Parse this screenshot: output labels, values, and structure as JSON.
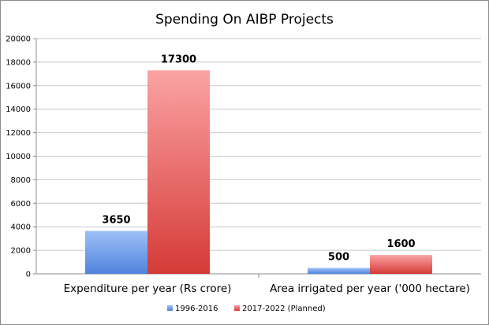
{
  "chart_data": {
    "type": "bar",
    "title": "Spending On AIBP Projects",
    "categories": [
      "Expenditure per year (Rs crore)",
      "Area irrigated per year ('000 hectare)"
    ],
    "series": [
      {
        "name": "1996-2016",
        "values": [
          3650,
          500
        ],
        "color": "#5b8ee6"
      },
      {
        "name": "2017-2022 (Planned)",
        "values": [
          17300,
          1600
        ],
        "color": "#e0524f"
      }
    ],
    "ylim": [
      0,
      20000
    ],
    "yticks": [
      0,
      2000,
      4000,
      6000,
      8000,
      10000,
      12000,
      14000,
      16000,
      18000,
      20000
    ],
    "grid": true,
    "legend_position": "bottom"
  }
}
